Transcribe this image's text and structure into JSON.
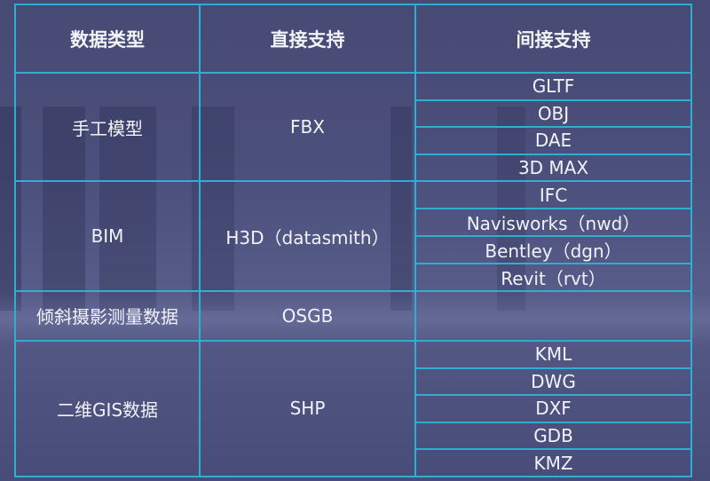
{
  "headers": [
    "数据类型",
    "直接支持",
    "间接支持"
  ],
  "groups": [
    {
      "type": "手工模型",
      "direct": "FBX",
      "indirect": [
        "GLTF",
        "OBJ",
        "DAE",
        "3D MAX"
      ]
    },
    {
      "type": "BIM",
      "direct": "H3D（datasmith）",
      "indirect": [
        "IFC",
        "Navisworks（nwd）",
        "Bentley（dgn）",
        "Revit（rvt）"
      ]
    },
    {
      "type": "倾斜摄影测量数据",
      "direct": "OSGB",
      "indirect": [
        ""
      ]
    },
    {
      "type": "二维GIS数据",
      "direct": "SHP",
      "indirect": [
        "KML",
        "DWG",
        "DXF",
        "GDB",
        "KMZ"
      ]
    }
  ],
  "colors": {
    "border": "#2eaed0",
    "background": "#4b4f7b",
    "text": "#f2f3f8"
  }
}
